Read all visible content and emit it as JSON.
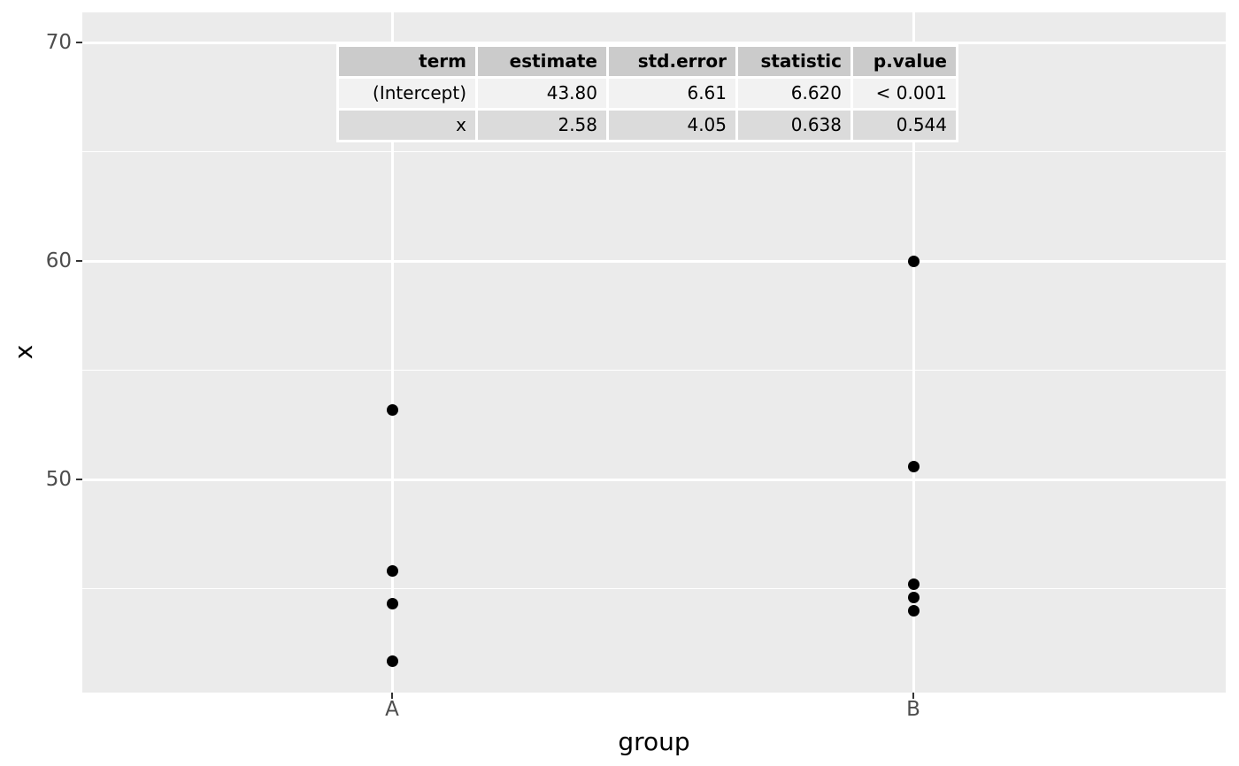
{
  "chart_data": {
    "type": "scatter",
    "title": "",
    "xlabel": "group",
    "ylabel": "x",
    "categories": [
      "A",
      "B"
    ],
    "series": [
      {
        "name": "A",
        "values": [
          53.2,
          45.8,
          44.3,
          41.7
        ]
      },
      {
        "name": "B",
        "values": [
          60.0,
          50.6,
          45.2,
          44.6,
          44.0
        ]
      }
    ],
    "ylim": [
      40.25,
      71.38
    ],
    "y_major_ticks": [
      70,
      60,
      50
    ],
    "y_minor_gridlines": [
      65,
      55,
      45
    ],
    "grid": "white major+minor horizontal lines and major vertical lines on gray panel",
    "legend": "none",
    "point_color": "#000000"
  },
  "stats_table": {
    "headers": [
      "term",
      "estimate",
      "std.error",
      "statistic",
      "p.value"
    ],
    "rows": [
      [
        "(Intercept)",
        "43.80",
        "6.61",
        "6.620",
        "< 0.001"
      ],
      [
        "x",
        "2.58",
        "4.05",
        "0.638",
        "0.544"
      ]
    ]
  },
  "colors": {
    "page_bg": "#ffffff",
    "panel_bg": "#ebebeb",
    "grid": "#ffffff",
    "point": "#000000",
    "axis_text": "#4d4d4d",
    "tick_mark": "#333333",
    "title_text": "#000000",
    "table_header_bg": "#cbcbcb",
    "table_row_odd_bg": "#f2f2f2",
    "table_row_even_bg": "#dbdbdb",
    "table_border": "#ffffff",
    "table_text": "#000000"
  }
}
